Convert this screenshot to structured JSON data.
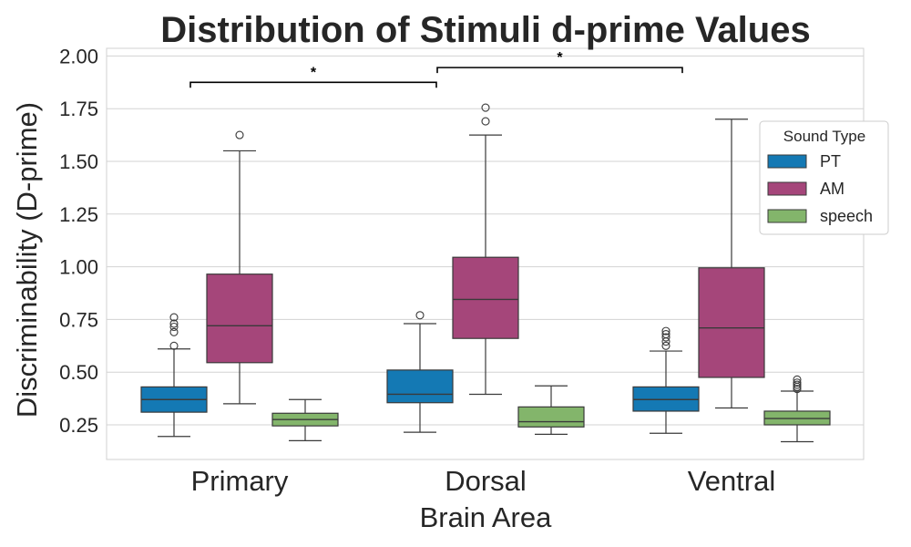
{
  "chart_data": {
    "type": "box",
    "title": "Distribution of Stimuli d-prime Values",
    "xlabel": "Brain Area",
    "ylabel": "Discriminability (D-prime)",
    "ylim": [
      0.08,
      2.03
    ],
    "yticks": [
      "0.25",
      "0.50",
      "0.75",
      "1.00",
      "1.25",
      "1.50",
      "1.75",
      "2.00"
    ],
    "grid": true,
    "categories": [
      "Primary",
      "Dorsal",
      "Ventral"
    ],
    "legend": {
      "title": "Sound Type",
      "placement": "right"
    },
    "series": [
      {
        "name": "PT",
        "color": "#1479b4",
        "boxes": [
          {
            "whisker_low": 0.195,
            "q1": 0.31,
            "median": 0.37,
            "q3": 0.43,
            "whisker_high": 0.61,
            "outliers": [
              0.625,
              0.69,
              0.715,
              0.73,
              0.76
            ]
          },
          {
            "whisker_low": 0.215,
            "q1": 0.355,
            "median": 0.395,
            "q3": 0.51,
            "whisker_high": 0.73,
            "outliers": [
              0.77
            ]
          },
          {
            "whisker_low": 0.21,
            "q1": 0.315,
            "median": 0.37,
            "q3": 0.43,
            "whisker_high": 0.6,
            "outliers": [
              0.625,
              0.645,
              0.665,
              0.68,
              0.695
            ]
          }
        ]
      },
      {
        "name": "AM",
        "color": "#a5467a",
        "boxes": [
          {
            "whisker_low": 0.35,
            "q1": 0.545,
            "median": 0.72,
            "q3": 0.965,
            "whisker_high": 1.55,
            "outliers": [
              1.625
            ]
          },
          {
            "whisker_low": 0.395,
            "q1": 0.66,
            "median": 0.845,
            "q3": 1.045,
            "whisker_high": 1.625,
            "outliers": [
              1.69,
              1.755
            ]
          },
          {
            "whisker_low": 0.33,
            "q1": 0.475,
            "median": 0.71,
            "q3": 0.995,
            "whisker_high": 1.7,
            "outliers": []
          }
        ]
      },
      {
        "name": "speech",
        "color": "#83b56b",
        "boxes": [
          {
            "whisker_low": 0.175,
            "q1": 0.245,
            "median": 0.275,
            "q3": 0.305,
            "whisker_high": 0.37,
            "outliers": []
          },
          {
            "whisker_low": 0.205,
            "q1": 0.24,
            "median": 0.265,
            "q3": 0.335,
            "whisker_high": 0.435,
            "outliers": []
          },
          {
            "whisker_low": 0.17,
            "q1": 0.25,
            "median": 0.28,
            "q3": 0.315,
            "whisker_high": 0.41,
            "outliers": [
              0.42,
              0.43,
              0.44,
              0.45,
              0.465
            ]
          }
        ]
      }
    ],
    "annotations": [
      {
        "text": "*",
        "from_category": "Primary",
        "to_category": "Dorsal",
        "y": 1.875
      },
      {
        "text": "*",
        "from_category": "Dorsal",
        "to_category": "Ventral",
        "y": 1.945
      }
    ]
  }
}
